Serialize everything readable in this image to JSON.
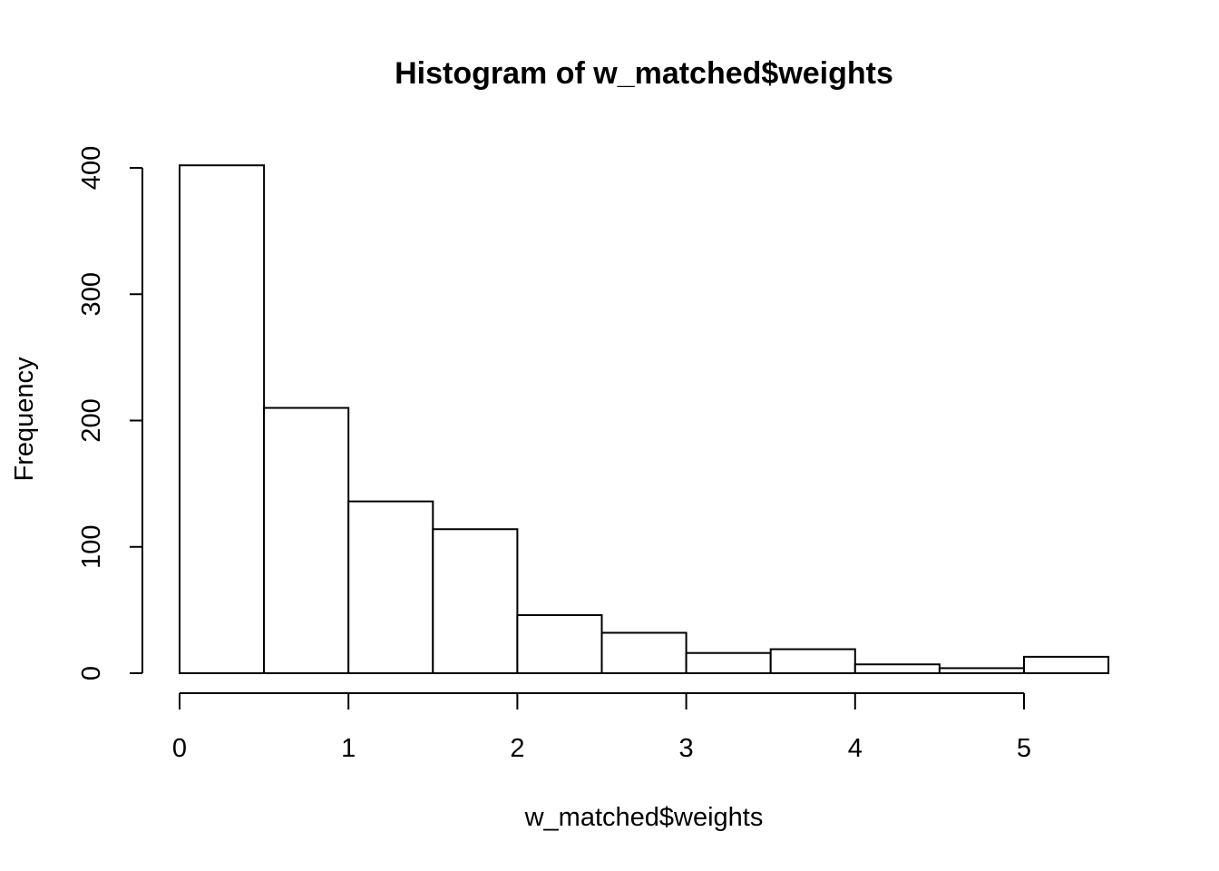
{
  "chart_data": {
    "type": "bar",
    "title": "Histogram of w_matched$weights",
    "xlabel": "w_matched$weights",
    "ylabel": "Frequency",
    "bin_width": 0.5,
    "bins": [
      {
        "x0": 0.0,
        "x1": 0.5,
        "count": 402
      },
      {
        "x0": 0.5,
        "x1": 1.0,
        "count": 210
      },
      {
        "x0": 1.0,
        "x1": 1.5,
        "count": 136
      },
      {
        "x0": 1.5,
        "x1": 2.0,
        "count": 114
      },
      {
        "x0": 2.0,
        "x1": 2.5,
        "count": 46
      },
      {
        "x0": 2.5,
        "x1": 3.0,
        "count": 32
      },
      {
        "x0": 3.0,
        "x1": 3.5,
        "count": 16
      },
      {
        "x0": 3.5,
        "x1": 4.0,
        "count": 19
      },
      {
        "x0": 4.0,
        "x1": 4.5,
        "count": 7
      },
      {
        "x0": 4.5,
        "x1": 5.0,
        "count": 4
      },
      {
        "x0": 5.0,
        "x1": 5.5,
        "count": 13
      }
    ],
    "xlim": [
      0,
      5.5
    ],
    "ylim": [
      0,
      400
    ],
    "xticks": [
      0,
      1,
      2,
      3,
      4,
      5
    ],
    "yticks": [
      0,
      100,
      200,
      300,
      400
    ],
    "grid": false,
    "colors": {
      "fill": "#ffffff",
      "stroke": "#000000"
    }
  }
}
